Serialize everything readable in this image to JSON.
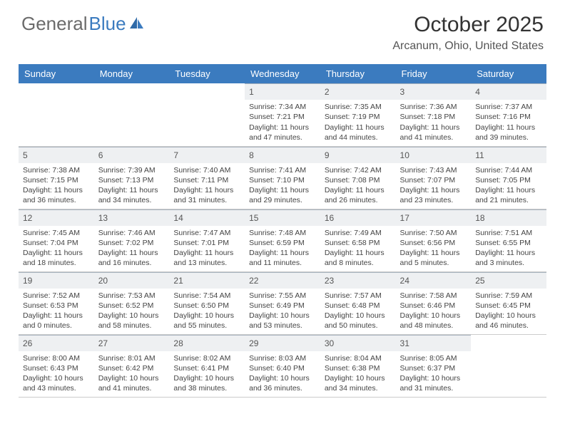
{
  "logo": {
    "text1": "General",
    "text2": "Blue"
  },
  "title": "October 2025",
  "location": "Arcanum, Ohio, United States",
  "colors": {
    "header_bg": "#3b7bbf",
    "header_text": "#ffffff",
    "daynum_bg": "#eef0f2",
    "border": "#cccccc",
    "logo_gray": "#6b6b6b",
    "logo_blue": "#3b7bbf"
  },
  "weekdays": [
    "Sunday",
    "Monday",
    "Tuesday",
    "Wednesday",
    "Thursday",
    "Friday",
    "Saturday"
  ],
  "weeks": [
    [
      null,
      null,
      null,
      {
        "n": "1",
        "sr": "7:34 AM",
        "ss": "7:21 PM",
        "dlh": "11",
        "dlm": "47"
      },
      {
        "n": "2",
        "sr": "7:35 AM",
        "ss": "7:19 PM",
        "dlh": "11",
        "dlm": "44"
      },
      {
        "n": "3",
        "sr": "7:36 AM",
        "ss": "7:18 PM",
        "dlh": "11",
        "dlm": "41"
      },
      {
        "n": "4",
        "sr": "7:37 AM",
        "ss": "7:16 PM",
        "dlh": "11",
        "dlm": "39"
      }
    ],
    [
      {
        "n": "5",
        "sr": "7:38 AM",
        "ss": "7:15 PM",
        "dlh": "11",
        "dlm": "36"
      },
      {
        "n": "6",
        "sr": "7:39 AM",
        "ss": "7:13 PM",
        "dlh": "11",
        "dlm": "34"
      },
      {
        "n": "7",
        "sr": "7:40 AM",
        "ss": "7:11 PM",
        "dlh": "11",
        "dlm": "31"
      },
      {
        "n": "8",
        "sr": "7:41 AM",
        "ss": "7:10 PM",
        "dlh": "11",
        "dlm": "29"
      },
      {
        "n": "9",
        "sr": "7:42 AM",
        "ss": "7:08 PM",
        "dlh": "11",
        "dlm": "26"
      },
      {
        "n": "10",
        "sr": "7:43 AM",
        "ss": "7:07 PM",
        "dlh": "11",
        "dlm": "23"
      },
      {
        "n": "11",
        "sr": "7:44 AM",
        "ss": "7:05 PM",
        "dlh": "11",
        "dlm": "21"
      }
    ],
    [
      {
        "n": "12",
        "sr": "7:45 AM",
        "ss": "7:04 PM",
        "dlh": "11",
        "dlm": "18"
      },
      {
        "n": "13",
        "sr": "7:46 AM",
        "ss": "7:02 PM",
        "dlh": "11",
        "dlm": "16"
      },
      {
        "n": "14",
        "sr": "7:47 AM",
        "ss": "7:01 PM",
        "dlh": "11",
        "dlm": "13"
      },
      {
        "n": "15",
        "sr": "7:48 AM",
        "ss": "6:59 PM",
        "dlh": "11",
        "dlm": "11"
      },
      {
        "n": "16",
        "sr": "7:49 AM",
        "ss": "6:58 PM",
        "dlh": "11",
        "dlm": "8"
      },
      {
        "n": "17",
        "sr": "7:50 AM",
        "ss": "6:56 PM",
        "dlh": "11",
        "dlm": "5"
      },
      {
        "n": "18",
        "sr": "7:51 AM",
        "ss": "6:55 PM",
        "dlh": "11",
        "dlm": "3"
      }
    ],
    [
      {
        "n": "19",
        "sr": "7:52 AM",
        "ss": "6:53 PM",
        "dlh": "11",
        "dlm": "0"
      },
      {
        "n": "20",
        "sr": "7:53 AM",
        "ss": "6:52 PM",
        "dlh": "10",
        "dlm": "58"
      },
      {
        "n": "21",
        "sr": "7:54 AM",
        "ss": "6:50 PM",
        "dlh": "10",
        "dlm": "55"
      },
      {
        "n": "22",
        "sr": "7:55 AM",
        "ss": "6:49 PM",
        "dlh": "10",
        "dlm": "53"
      },
      {
        "n": "23",
        "sr": "7:57 AM",
        "ss": "6:48 PM",
        "dlh": "10",
        "dlm": "50"
      },
      {
        "n": "24",
        "sr": "7:58 AM",
        "ss": "6:46 PM",
        "dlh": "10",
        "dlm": "48"
      },
      {
        "n": "25",
        "sr": "7:59 AM",
        "ss": "6:45 PM",
        "dlh": "10",
        "dlm": "46"
      }
    ],
    [
      {
        "n": "26",
        "sr": "8:00 AM",
        "ss": "6:43 PM",
        "dlh": "10",
        "dlm": "43"
      },
      {
        "n": "27",
        "sr": "8:01 AM",
        "ss": "6:42 PM",
        "dlh": "10",
        "dlm": "41"
      },
      {
        "n": "28",
        "sr": "8:02 AM",
        "ss": "6:41 PM",
        "dlh": "10",
        "dlm": "38"
      },
      {
        "n": "29",
        "sr": "8:03 AM",
        "ss": "6:40 PM",
        "dlh": "10",
        "dlm": "36"
      },
      {
        "n": "30",
        "sr": "8:04 AM",
        "ss": "6:38 PM",
        "dlh": "10",
        "dlm": "34"
      },
      {
        "n": "31",
        "sr": "8:05 AM",
        "ss": "6:37 PM",
        "dlh": "10",
        "dlm": "31"
      },
      null
    ]
  ]
}
